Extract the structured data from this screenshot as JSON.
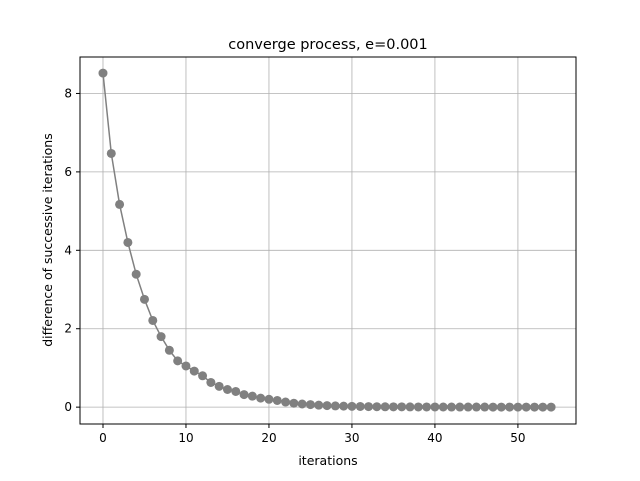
{
  "chart_data": {
    "type": "line",
    "title": "converge process, e=0.001",
    "xlabel": "iterations",
    "ylabel": "difference of successive iterations",
    "xlim": [
      -2.77,
      57.0
    ],
    "ylim": [
      -0.43,
      8.93
    ],
    "xticks": [
      0,
      10,
      20,
      30,
      40,
      50
    ],
    "yticks": [
      0,
      2,
      4,
      6,
      8
    ],
    "grid": true,
    "line_color": "#808080",
    "marker": "circle",
    "series": [
      {
        "x": [
          0,
          1,
          2,
          3,
          4,
          5,
          6,
          7,
          8,
          9,
          10,
          11,
          12,
          13,
          14,
          15,
          16,
          17,
          18,
          19,
          20,
          21,
          22,
          23,
          24,
          25,
          26,
          27,
          28,
          29,
          30,
          31,
          32,
          33,
          34,
          35,
          36,
          37,
          38,
          39,
          40,
          41,
          42,
          43,
          44,
          45,
          46,
          47,
          48,
          49,
          50,
          51,
          52,
          53,
          54
        ],
        "y": [
          8.52,
          6.47,
          5.17,
          4.2,
          3.39,
          2.75,
          2.21,
          1.8,
          1.45,
          1.18,
          1.05,
          0.92,
          0.8,
          0.63,
          0.53,
          0.45,
          0.4,
          0.32,
          0.28,
          0.23,
          0.2,
          0.17,
          0.13,
          0.1,
          0.08,
          0.065,
          0.05,
          0.04,
          0.032,
          0.026,
          0.021,
          0.017,
          0.014,
          0.011,
          0.009,
          0.008,
          0.007,
          0.006,
          0.005,
          0.0045,
          0.004,
          0.0035,
          0.003,
          0.0028,
          0.0025,
          0.0022,
          0.002,
          0.0018,
          0.0016,
          0.0015,
          0.0014,
          0.0013,
          0.0012,
          0.0011,
          0.001
        ]
      }
    ]
  }
}
